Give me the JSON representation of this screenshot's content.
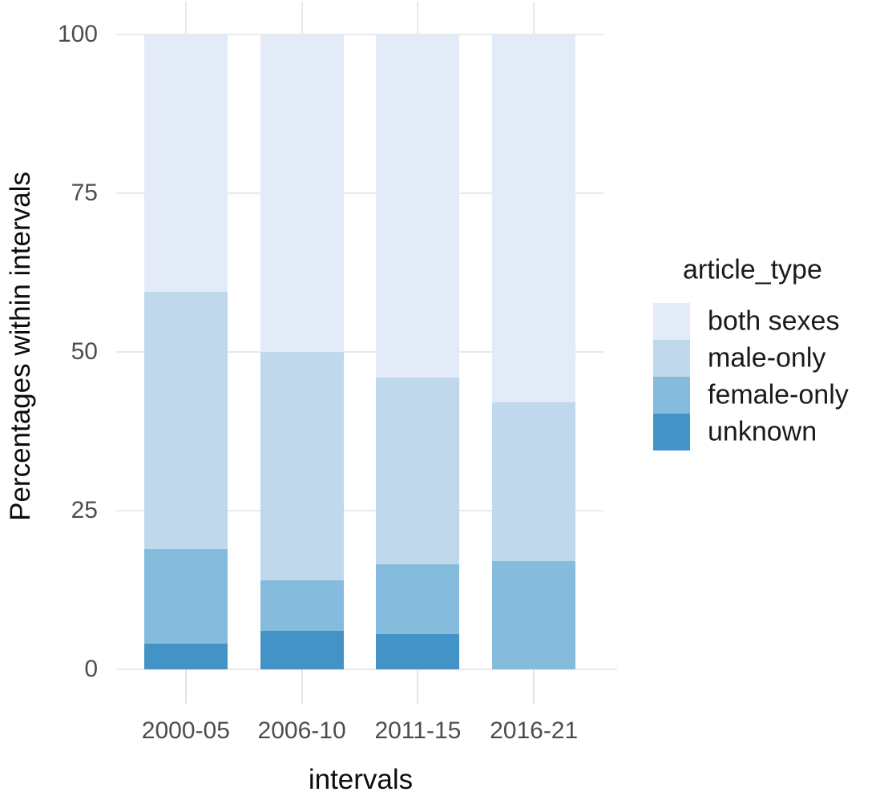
{
  "chart_data": {
    "type": "bar",
    "stacked": true,
    "orientation": "vertical",
    "title": "",
    "xlabel": "intervals",
    "ylabel": "Percentages within intervals",
    "categories": [
      "2000-05",
      "2006-10",
      "2011-15",
      "2016-21"
    ],
    "series": [
      {
        "name": "unknown",
        "color": "#4493c7",
        "values": [
          4,
          6,
          5.5,
          0
        ]
      },
      {
        "name": "female-only",
        "color": "#85bcdd",
        "values": [
          15,
          8,
          11,
          17
        ]
      },
      {
        "name": "male-only",
        "color": "#bfd8ec",
        "values": [
          40.5,
          36,
          29.5,
          25
        ]
      },
      {
        "name": "both sexes",
        "color": "#e2ebf7",
        "values": [
          40.5,
          50,
          54,
          58
        ]
      }
    ],
    "ylim": [
      0,
      100
    ],
    "yticks": [
      0,
      25,
      50,
      75,
      100
    ],
    "grid": "horizontal major gridlines, vertical category gridlines",
    "legend": {
      "title": "article_type",
      "position": "right",
      "entries": [
        "both sexes",
        "male-only",
        "female-only",
        "unknown"
      ]
    }
  },
  "colors": {
    "background": "#ffffff",
    "gridline": "#e9e9e9",
    "axis_tick": "#e3e3e3",
    "tick_text": "#4d4d4d",
    "title_text": "#0d0d0d"
  }
}
